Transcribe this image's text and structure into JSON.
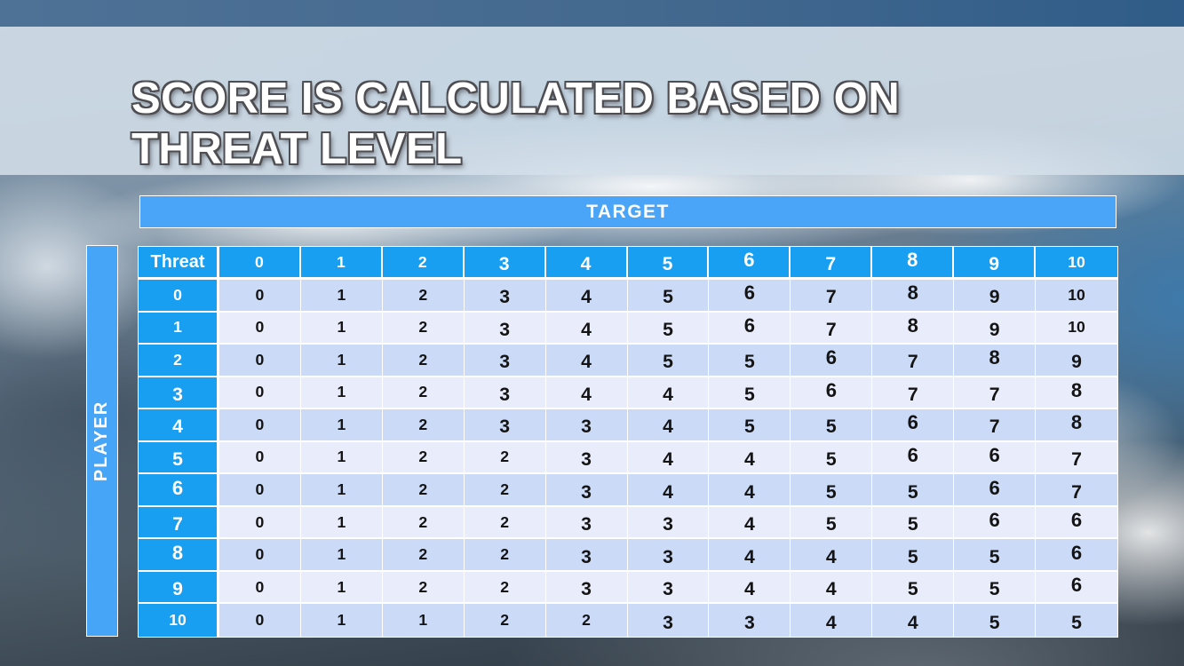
{
  "slide": {
    "title_line1": "SCORE IS CALCULATED BASED ON",
    "title_line2": "THREAT LEVEL"
  },
  "matrix": {
    "target_label": "TARGET",
    "player_label": "PLAYER",
    "corner_label": "Threat",
    "column_headers": [
      "0",
      "1",
      "2",
      "3",
      "4",
      "5",
      "6",
      "7",
      "8",
      "9",
      "10"
    ],
    "rows": [
      {
        "header": "0",
        "values": [
          0,
          1,
          2,
          3,
          4,
          5,
          6,
          7,
          8,
          9,
          10
        ]
      },
      {
        "header": "1",
        "values": [
          0,
          1,
          2,
          3,
          4,
          5,
          6,
          7,
          8,
          9,
          10
        ]
      },
      {
        "header": "2",
        "values": [
          0,
          1,
          2,
          3,
          4,
          5,
          5,
          6,
          7,
          8,
          9
        ]
      },
      {
        "header": "3",
        "values": [
          0,
          1,
          2,
          3,
          4,
          4,
          5,
          6,
          7,
          7,
          8
        ]
      },
      {
        "header": "4",
        "values": [
          0,
          1,
          2,
          3,
          3,
          4,
          5,
          5,
          6,
          7,
          8
        ]
      },
      {
        "header": "5",
        "values": [
          0,
          1,
          2,
          2,
          3,
          4,
          4,
          5,
          6,
          6,
          7
        ]
      },
      {
        "header": "6",
        "values": [
          0,
          1,
          2,
          2,
          3,
          4,
          4,
          5,
          5,
          6,
          7
        ]
      },
      {
        "header": "7",
        "values": [
          0,
          1,
          2,
          2,
          3,
          3,
          4,
          5,
          5,
          6,
          6
        ]
      },
      {
        "header": "8",
        "values": [
          0,
          1,
          2,
          2,
          3,
          3,
          4,
          4,
          5,
          5,
          6
        ]
      },
      {
        "header": "9",
        "values": [
          0,
          1,
          2,
          2,
          3,
          3,
          4,
          4,
          5,
          5,
          6
        ]
      },
      {
        "header": "10",
        "values": [
          0,
          1,
          1,
          2,
          2,
          3,
          3,
          4,
          4,
          5,
          5
        ]
      }
    ]
  },
  "chart_data": {
    "type": "table",
    "title": "Score by player threat level (rows) vs target threat level (columns)",
    "row_axis_label": "PLAYER Threat",
    "column_axis_label": "TARGET Threat",
    "columns": [
      0,
      1,
      2,
      3,
      4,
      5,
      6,
      7,
      8,
      9,
      10
    ],
    "rows": [
      0,
      1,
      2,
      3,
      4,
      5,
      6,
      7,
      8,
      9,
      10
    ],
    "values": [
      [
        0,
        1,
        2,
        3,
        4,
        5,
        6,
        7,
        8,
        9,
        10
      ],
      [
        0,
        1,
        2,
        3,
        4,
        5,
        6,
        7,
        8,
        9,
        10
      ],
      [
        0,
        1,
        2,
        3,
        4,
        5,
        5,
        6,
        7,
        8,
        9
      ],
      [
        0,
        1,
        2,
        3,
        4,
        4,
        5,
        6,
        7,
        7,
        8
      ],
      [
        0,
        1,
        2,
        3,
        3,
        4,
        5,
        5,
        6,
        7,
        8
      ],
      [
        0,
        1,
        2,
        2,
        3,
        4,
        4,
        5,
        6,
        6,
        7
      ],
      [
        0,
        1,
        2,
        2,
        3,
        4,
        4,
        5,
        5,
        6,
        7
      ],
      [
        0,
        1,
        2,
        2,
        3,
        3,
        4,
        5,
        5,
        6,
        6
      ],
      [
        0,
        1,
        2,
        2,
        3,
        3,
        4,
        4,
        5,
        5,
        6
      ],
      [
        0,
        1,
        2,
        2,
        3,
        3,
        4,
        4,
        5,
        5,
        6
      ],
      [
        0,
        1,
        1,
        2,
        2,
        3,
        3,
        4,
        4,
        5,
        5
      ]
    ]
  },
  "colors": {
    "header_blue": "#189FF2",
    "banner_blue": "#4AA5F8",
    "row_even": "#CBDAF7",
    "row_odd": "#E9EDFB",
    "grid_line": "#FFFFFF",
    "title_text": "#FFFFFF",
    "title_outline": "#4E4E52",
    "cell_text": "#141414",
    "top_strip": "#44698F"
  }
}
